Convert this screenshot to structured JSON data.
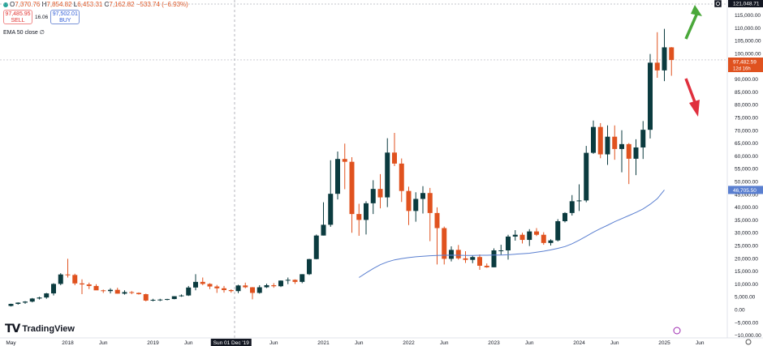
{
  "header": {
    "ohlc": [
      {
        "k": "O",
        "v": "7,370.76"
      },
      {
        "k": "H",
        "v": "7,854.82"
      },
      {
        "k": "L",
        "v": "6,453.31"
      },
      {
        "k": "C",
        "v": "7,162.82"
      },
      {
        "k": "",
        "v": "−533.74 (−6.93%)"
      }
    ],
    "sell_price": "97,485.95",
    "sell_label": "SELL",
    "spread": "16.06",
    "buy_price": "97,502.01",
    "buy_label": "BUY",
    "indicator": "EMA 50 close",
    "indicator_value": "∅"
  },
  "brand": {
    "logo_text": "TradingView"
  },
  "colors": {
    "up": "#0b3b3f",
    "down": "#e0521f",
    "ema": "#5a7fd0",
    "arrow_up": "#4aa83a",
    "arrow_down": "#e02f3d"
  },
  "chart_data": {
    "type": "candlestick",
    "interval": "1M",
    "ylim": [
      -10000,
      120000
    ],
    "yticks": [
      -10000,
      -5000,
      0,
      5000,
      10000,
      15000,
      20000,
      25000,
      30000,
      35000,
      40000,
      45000,
      50000,
      55000,
      60000,
      65000,
      70000,
      75000,
      80000,
      85000,
      90000,
      95000,
      100000,
      105000,
      110000,
      115000
    ],
    "y_tick_labels": [
      "−10,000.00",
      "−5,000.00",
      "0.00",
      "5,000.00",
      "10,000.00",
      "15,000.00",
      "20,000.00",
      "25,000.00",
      "30,000.00",
      "35,000.00",
      "40,000.00",
      "45,000.00",
      "50,000.00",
      "55,000.00",
      "60,000.00",
      "65,000.00",
      "70,000.00",
      "75,000.00",
      "80,000.00",
      "85,000.00",
      "90,000.00",
      "95,000.00",
      "100,000.00",
      "105,000.00",
      "110,000.00",
      "115,000.00"
    ],
    "x_labels": [
      {
        "label": "May",
        "month": 0
      },
      {
        "label": "2018",
        "month": 8
      },
      {
        "label": "Jun",
        "month": 13
      },
      {
        "label": "2019",
        "month": 20
      },
      {
        "label": "Jun",
        "month": 25
      },
      {
        "label": "Sun 01 Dec '19",
        "month": 31,
        "highlight": true
      },
      {
        "label": "Jun",
        "month": 37
      },
      {
        "label": "2021",
        "month": 44
      },
      {
        "label": "Jun",
        "month": 49
      },
      {
        "label": "2022",
        "month": 56
      },
      {
        "label": "Jun",
        "month": 61
      },
      {
        "label": "2023",
        "month": 68
      },
      {
        "label": "Jun",
        "month": 73
      },
      {
        "label": "2024",
        "month": 80
      },
      {
        "label": "Jun",
        "month": 85
      },
      {
        "label": "2025",
        "month": 92
      },
      {
        "label": "Jun",
        "month": 97
      }
    ],
    "candles": [
      [
        1400,
        2300,
        1200,
        2200
      ],
      [
        2200,
        2800,
        1900,
        2700
      ],
      [
        2700,
        3300,
        2200,
        3100
      ],
      [
        3100,
        4500,
        2800,
        4300
      ],
      [
        4300,
        5000,
        3900,
        4700
      ],
      [
        4700,
        6500,
        4200,
        6300
      ],
      [
        6300,
        10300,
        5500,
        10000
      ],
      [
        10000,
        14200,
        9500,
        13700
      ],
      [
        13700,
        19800,
        12500,
        13500
      ],
      [
        13500,
        14000,
        9500,
        10200
      ],
      [
        10200,
        11800,
        6000,
        9800
      ],
      [
        9800,
        10500,
        8000,
        9200
      ],
      [
        9200,
        9900,
        8000,
        7500
      ],
      [
        7500,
        7800,
        6500,
        7200
      ],
      [
        7200,
        8300,
        6300,
        7700
      ],
      [
        7700,
        8500,
        6200,
        6200
      ],
      [
        6200,
        7500,
        5800,
        6800
      ],
      [
        6800,
        7200,
        6000,
        6500
      ],
      [
        6500,
        6700,
        5800,
        6000
      ],
      [
        6000,
        6200,
        3200,
        3500
      ],
      [
        3500,
        4200,
        3200,
        3800
      ],
      [
        3800,
        4200,
        3300,
        3900
      ],
      [
        3900,
        4200,
        3600,
        4100
      ],
      [
        4100,
        5200,
        4000,
        5200
      ],
      [
        5200,
        5900,
        5000,
        5500
      ],
      [
        5500,
        9200,
        5300,
        8600
      ],
      [
        8600,
        13800,
        7500,
        10800
      ],
      [
        10800,
        12500,
        9500,
        10000
      ],
      [
        10000,
        10300,
        8000,
        9000
      ],
      [
        9000,
        9600,
        6500,
        8300
      ],
      [
        8300,
        9200,
        6600,
        7600
      ],
      [
        7600,
        7900,
        6600,
        7200
      ],
      [
        7200,
        9700,
        6400,
        9400
      ],
      [
        9400,
        10500,
        8300,
        8700
      ],
      [
        8700,
        8800,
        4000,
        6500
      ],
      [
        6500,
        9500,
        6200,
        8700
      ],
      [
        8700,
        10100,
        8400,
        9500
      ],
      [
        9500,
        10300,
        8500,
        9100
      ],
      [
        9100,
        11400,
        8800,
        11300
      ],
      [
        11300,
        12500,
        9900,
        11600
      ],
      [
        11600,
        11800,
        10000,
        10800
      ],
      [
        10800,
        13800,
        10300,
        13800
      ],
      [
        13800,
        19800,
        13500,
        19700
      ],
      [
        19700,
        29300,
        19600,
        28900
      ],
      [
        28900,
        41900,
        28900,
        33100
      ],
      [
        33100,
        58300,
        32300,
        45200
      ],
      [
        45200,
        61700,
        43000,
        58800
      ],
      [
        58800,
        64800,
        47000,
        57700
      ],
      [
        57700,
        59500,
        30000,
        37300
      ],
      [
        37300,
        41300,
        28800,
        35000
      ],
      [
        35000,
        42300,
        29300,
        41500
      ],
      [
        41500,
        50500,
        37300,
        47100
      ],
      [
        47100,
        52900,
        39500,
        43800
      ],
      [
        43800,
        66900,
        40000,
        61300
      ],
      [
        61300,
        69000,
        56000,
        57000
      ],
      [
        57000,
        59000,
        42000,
        46300
      ],
      [
        46300,
        48000,
        33000,
        38500
      ],
      [
        38500,
        45800,
        34300,
        43200
      ],
      [
        43200,
        48200,
        37500,
        45500
      ],
      [
        45500,
        47500,
        26700,
        37700
      ],
      [
        37700,
        39900,
        17600,
        31800
      ],
      [
        31800,
        32400,
        17600,
        19800
      ],
      [
        19800,
        24700,
        18800,
        23300
      ],
      [
        23300,
        25200,
        19500,
        20000
      ],
      [
        20000,
        22800,
        18200,
        19400
      ],
      [
        19400,
        21000,
        18100,
        20500
      ],
      [
        20500,
        21500,
        15500,
        17100
      ],
      [
        17100,
        18000,
        16300,
        16500
      ],
      [
        16500,
        23900,
        16500,
        23100
      ],
      [
        23100,
        25300,
        21400,
        23100
      ],
      [
        23100,
        29200,
        19500,
        28500
      ],
      [
        28500,
        31000,
        26900,
        29200
      ],
      [
        29200,
        30000,
        25800,
        27200
      ],
      [
        27200,
        31400,
        24800,
        30500
      ],
      [
        30500,
        31800,
        28700,
        29200
      ],
      [
        29200,
        30200,
        25300,
        26000
      ],
      [
        26000,
        27400,
        25000,
        27000
      ],
      [
        27000,
        35300,
        26600,
        34500
      ],
      [
        34500,
        38000,
        34000,
        37700
      ],
      [
        37700,
        44700,
        36700,
        42300
      ],
      [
        42300,
        48900,
        38500,
        42600
      ],
      [
        42600,
        63900,
        41900,
        61200
      ],
      [
        61200,
        73800,
        60800,
        71300
      ],
      [
        71300,
        72800,
        59100,
        60600
      ],
      [
        60600,
        71900,
        56500,
        67500
      ],
      [
        67500,
        71900,
        58500,
        62700
      ],
      [
        62700,
        70000,
        53600,
        64600
      ],
      [
        64600,
        65000,
        49000,
        58900
      ],
      [
        58900,
        66500,
        52500,
        63300
      ],
      [
        63300,
        73600,
        58800,
        70200
      ],
      [
        70200,
        99800,
        66800,
        96400
      ],
      [
        96400,
        108300,
        90500,
        93400
      ],
      [
        93400,
        109600,
        89200,
        102400
      ],
      [
        102400,
        102500,
        91300,
        97482
      ]
    ],
    "ema50": {
      "start_month": 49,
      "values": [
        12500,
        14300,
        16000,
        17500,
        18600,
        19400,
        19900,
        20300,
        20600,
        20800,
        21000,
        21100,
        21200,
        21250,
        21200,
        21100,
        21100,
        21200,
        21200,
        21300,
        21300,
        21400,
        21600,
        21800,
        22000,
        22400,
        22800,
        23300,
        23900,
        24600,
        25700,
        27100,
        28600,
        30200,
        31600,
        32900,
        34300,
        35500,
        36700,
        37900,
        39300,
        41100,
        43300,
        46700
      ]
    },
    "annotations": {
      "current_price_label": "97,482.59",
      "countdown_label": "12d 16h",
      "ema_label": "46,705.50",
      "top_label": "121,048.71"
    }
  }
}
